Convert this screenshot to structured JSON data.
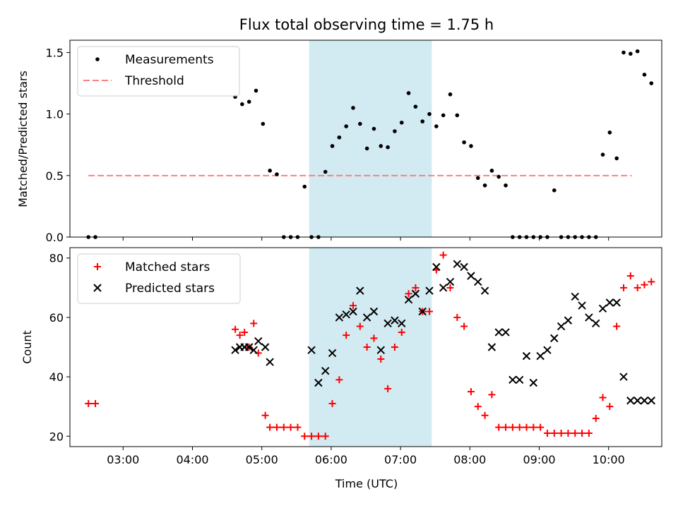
{
  "chart_data": [
    {
      "type": "scatter",
      "title": "Flux total observing time = 1.75 h",
      "ylabel": "Matched/Predicted stars",
      "xlabel": "",
      "ylim": [
        0,
        1.6
      ],
      "xlim": [
        "02:14",
        "10:46"
      ],
      "yticks": [
        "0.0",
        "0.5",
        "1.0",
        "1.5"
      ],
      "grid": false,
      "legend_position": "top-left",
      "highlight_span": [
        "05:41",
        "07:27"
      ],
      "highlight_color": "#add8e6",
      "threshold": {
        "name": "Threshold",
        "value": 0.5,
        "x_start": "02:30",
        "x_end": "10:20",
        "color": "#ff7f7f"
      },
      "series": [
        {
          "name": "Measurements",
          "color": "#000000",
          "x": [
            "02:30",
            "02:36",
            "04:37",
            "04:43",
            "04:49",
            "04:55",
            "05:01",
            "05:07",
            "05:13",
            "05:19",
            "05:25",
            "05:31",
            "05:37",
            "05:43",
            "05:49",
            "05:55",
            "06:01",
            "06:07",
            "06:13",
            "06:19",
            "06:25",
            "06:31",
            "06:37",
            "06:43",
            "06:49",
            "06:55",
            "07:01",
            "07:07",
            "07:13",
            "07:19",
            "07:25",
            "07:31",
            "07:37",
            "07:43",
            "07:49",
            "07:55",
            "08:01",
            "08:07",
            "08:13",
            "08:19",
            "08:25",
            "08:31",
            "08:37",
            "08:43",
            "08:49",
            "08:55",
            "09:01",
            "09:07",
            "09:13",
            "09:19",
            "09:25",
            "09:31",
            "09:37",
            "09:43",
            "09:49",
            "09:55",
            "10:01",
            "10:07",
            "10:13",
            "10:19",
            "10:25",
            "10:31",
            "10:37"
          ],
          "y": [
            0.0,
            0.0,
            1.14,
            1.08,
            1.1,
            1.19,
            0.92,
            0.54,
            0.51,
            0.0,
            0.0,
            0.0,
            0.41,
            0.0,
            0.0,
            0.53,
            0.74,
            0.81,
            0.9,
            1.05,
            0.92,
            0.72,
            0.88,
            0.74,
            0.73,
            0.86,
            0.93,
            1.17,
            1.06,
            0.94,
            1.0,
            0.9,
            0.99,
            1.16,
            0.99,
            0.77,
            0.74,
            0.48,
            0.42,
            0.54,
            0.49,
            0.42,
            0.0,
            0.0,
            0.0,
            0.0,
            0.0,
            0.0,
            0.38,
            0.0,
            0.0,
            0.0,
            0.0,
            0.0,
            0.0,
            0.67,
            0.85,
            0.64,
            1.5,
            1.49,
            1.51,
            1.32,
            1.25
          ]
        }
      ]
    },
    {
      "type": "scatter",
      "title": "",
      "ylabel": "Count",
      "xlabel": "Time (UTC)",
      "ylim": [
        16.5,
        83.5
      ],
      "xlim": [
        "02:14",
        "10:46"
      ],
      "yticks": [
        "20",
        "40",
        "60",
        "80"
      ],
      "xticks": [
        "03:00",
        "04:00",
        "05:00",
        "06:00",
        "07:00",
        "08:00",
        "09:00",
        "10:00"
      ],
      "grid": false,
      "legend_position": "top-left",
      "highlight_span": [
        "05:41",
        "07:27"
      ],
      "series": [
        {
          "name": "Matched stars",
          "color": "#ff0000",
          "marker": "plus",
          "x": [
            "02:30",
            "02:36",
            "04:37",
            "04:41",
            "04:45",
            "04:49",
            "04:53",
            "04:57",
            "05:03",
            "05:07",
            "05:13",
            "05:19",
            "05:25",
            "05:31",
            "05:37",
            "05:43",
            "05:49",
            "05:55",
            "06:01",
            "06:07",
            "06:13",
            "06:19",
            "06:25",
            "06:31",
            "06:37",
            "06:43",
            "06:49",
            "06:55",
            "07:01",
            "07:07",
            "07:13",
            "07:19",
            "07:25",
            "07:31",
            "07:37",
            "07:43",
            "07:49",
            "07:55",
            "08:01",
            "08:07",
            "08:13",
            "08:19",
            "08:25",
            "08:31",
            "08:37",
            "08:43",
            "08:49",
            "08:55",
            "09:01",
            "09:07",
            "09:13",
            "09:19",
            "09:25",
            "09:31",
            "09:37",
            "09:43",
            "09:49",
            "09:55",
            "10:01",
            "10:07",
            "10:13",
            "10:19",
            "10:25",
            "10:31",
            "10:37"
          ],
          "y": [
            31,
            31,
            56,
            54,
            55,
            50,
            58,
            48,
            27,
            23,
            23,
            23,
            23,
            23,
            20,
            20,
            20,
            20,
            31,
            39,
            54,
            64,
            57,
            50,
            53,
            46,
            36,
            50,
            55,
            68,
            70,
            62,
            62,
            76,
            81,
            70,
            60,
            57,
            35,
            30,
            27,
            34,
            23,
            23,
            23,
            23,
            23,
            23,
            23,
            21,
            21,
            21,
            21,
            21,
            21,
            21,
            26,
            33,
            30,
            57,
            70,
            74,
            70,
            71,
            72
          ]
        },
        {
          "name": "Predicted stars",
          "color": "#000000",
          "marker": "x",
          "x": [
            "04:37",
            "04:41",
            "04:45",
            "04:49",
            "04:53",
            "04:57",
            "05:03",
            "05:07",
            "05:43",
            "05:49",
            "05:55",
            "06:01",
            "06:07",
            "06:13",
            "06:19",
            "06:25",
            "06:31",
            "06:37",
            "06:43",
            "06:49",
            "06:55",
            "07:01",
            "07:07",
            "07:13",
            "07:19",
            "07:25",
            "07:31",
            "07:37",
            "07:43",
            "07:49",
            "07:55",
            "08:01",
            "08:07",
            "08:13",
            "08:19",
            "08:25",
            "08:31",
            "08:37",
            "08:43",
            "08:49",
            "08:55",
            "09:01",
            "09:07",
            "09:13",
            "09:19",
            "09:25",
            "09:31",
            "09:37",
            "09:43",
            "09:49",
            "09:55",
            "10:01",
            "10:07",
            "10:13",
            "10:19",
            "10:25",
            "10:31",
            "10:37"
          ],
          "y": [
            49,
            50,
            50,
            50,
            49,
            52,
            50,
            45,
            49,
            38,
            42,
            48,
            60,
            61,
            62,
            69,
            60,
            62,
            49,
            58,
            59,
            58,
            66,
            68,
            62,
            69,
            77,
            70,
            72,
            78,
            77,
            74,
            72,
            69,
            50,
            55,
            55,
            39,
            39,
            47,
            38,
            47,
            49,
            53,
            57,
            59,
            67,
            64,
            60,
            58,
            63,
            65,
            65,
            40,
            32,
            32,
            32,
            32
          ]
        }
      ]
    }
  ]
}
